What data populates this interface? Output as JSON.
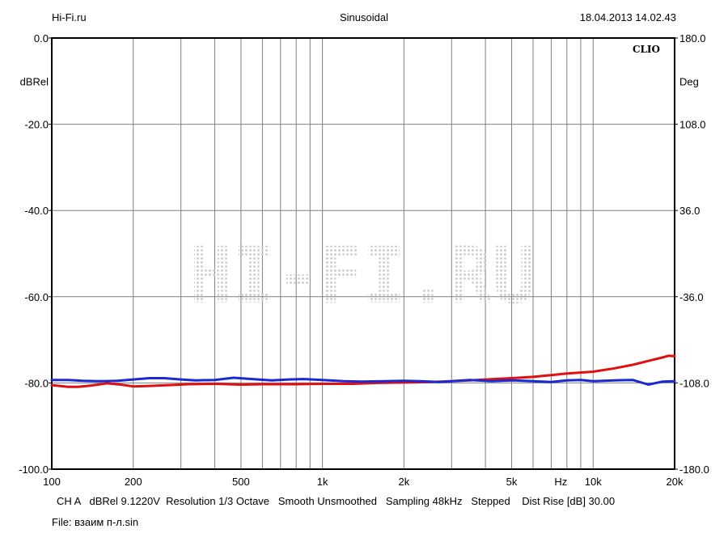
{
  "header": {
    "left": "Hi-Fi.ru",
    "center": "Sinusoidal",
    "right": "18.04.2013 14.02.43"
  },
  "brand": "CLIO",
  "watermark": "HI-FI.RU",
  "colors": {
    "series1": "#e01010",
    "series2": "#1a2ad0",
    "grid": "#808080"
  },
  "chart_data": {
    "type": "line",
    "xscale": "log",
    "xlim": [
      100,
      20000
    ],
    "ylim": [
      -100,
      0
    ],
    "y2lim": [
      -180,
      180
    ],
    "ylabel": "dBRel",
    "y2label": "Deg",
    "x_unit_label": "Hz",
    "x_ticks": [
      {
        "value": 100,
        "label": "100"
      },
      {
        "value": 200,
        "label": "200"
      },
      {
        "value": 500,
        "label": "500"
      },
      {
        "value": 1000,
        "label": "1k"
      },
      {
        "value": 2000,
        "label": "2k"
      },
      {
        "value": 5000,
        "label": "5k"
      },
      {
        "value": 10000,
        "label": "10k"
      },
      {
        "value": 20000,
        "label": "20k"
      }
    ],
    "y_ticks": [
      {
        "value": 0,
        "label": "0.0"
      },
      {
        "value": -20,
        "label": "-20.0"
      },
      {
        "value": -40,
        "label": "-40.0"
      },
      {
        "value": -60,
        "label": "-60.0"
      },
      {
        "value": -80,
        "label": "-80.0"
      },
      {
        "value": -100,
        "label": "-100.0"
      }
    ],
    "y2_ticks": [
      {
        "value": 180,
        "label": "180.0"
      },
      {
        "value": 108,
        "label": "108.0"
      },
      {
        "value": 36,
        "label": "36.0"
      },
      {
        "value": -36,
        "label": "-36.0"
      },
      {
        "value": -108,
        "label": "-108.0"
      },
      {
        "value": -180,
        "label": "-180.0"
      }
    ],
    "grid": true,
    "series": [
      {
        "color": "#e01010",
        "x": [
          100,
          115,
          125,
          140,
          160,
          180,
          200,
          230,
          270,
          320,
          400,
          500,
          600,
          800,
          1000,
          1300,
          1600,
          2000,
          2500,
          3000,
          3500,
          4000,
          5000,
          6000,
          7000,
          8000,
          10000,
          12000,
          14000,
          16000,
          18000,
          19000,
          20000
        ],
        "y": [
          -80.5,
          -80.9,
          -80.9,
          -80.6,
          -80.1,
          -80.4,
          -80.8,
          -80.7,
          -80.5,
          -80.3,
          -80.2,
          -80.4,
          -80.3,
          -80.3,
          -80.2,
          -80.2,
          -80.0,
          -79.9,
          -79.8,
          -79.6,
          -79.4,
          -79.2,
          -78.9,
          -78.6,
          -78.2,
          -77.8,
          -77.4,
          -76.6,
          -75.8,
          -74.9,
          -74.1,
          -73.7,
          -73.8
        ]
      },
      {
        "color": "#1a2ad0",
        "x": [
          100,
          115,
          130,
          150,
          175,
          200,
          230,
          260,
          300,
          340,
          400,
          470,
          550,
          650,
          750,
          850,
          1000,
          1200,
          1400,
          1700,
          2000,
          2300,
          2700,
          3000,
          3500,
          4200,
          5000,
          6000,
          7000,
          8000,
          9000,
          10000,
          12000,
          14000,
          16000,
          18000,
          20000
        ],
        "y": [
          -79.3,
          -79.3,
          -79.5,
          -79.6,
          -79.5,
          -79.2,
          -78.9,
          -78.9,
          -79.2,
          -79.4,
          -79.3,
          -78.8,
          -79.1,
          -79.4,
          -79.2,
          -79.1,
          -79.3,
          -79.6,
          -79.7,
          -79.6,
          -79.5,
          -79.6,
          -79.8,
          -79.6,
          -79.3,
          -79.6,
          -79.4,
          -79.6,
          -79.8,
          -79.4,
          -79.3,
          -79.6,
          -79.4,
          -79.3,
          -80.4,
          -79.7,
          -79.6
        ]
      }
    ]
  },
  "footer": {
    "line1": "CH A   dBRel 9.1220V  Resolution 1/3 Octave   Smooth Unsmoothed   Sampling 48kHz   Stepped    Dist Rise [dB] 30.00",
    "line2": "File: взаим п-л.sin"
  }
}
